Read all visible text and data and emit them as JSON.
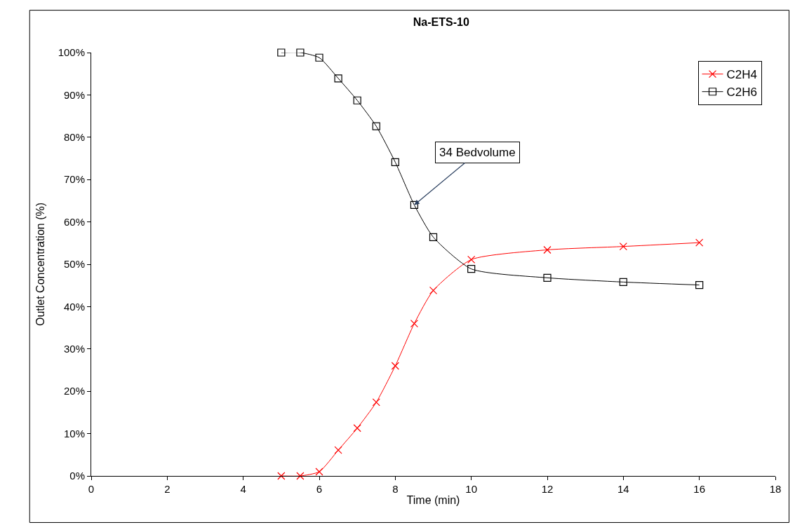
{
  "chart_data": {
    "type": "line",
    "title": "Na-ETS-10",
    "xlabel": "Time (min)",
    "ylabel": "Outlet Concentration (%)",
    "xlim": [
      0,
      18
    ],
    "xticks": [
      0,
      2,
      4,
      6,
      8,
      10,
      12,
      14,
      16,
      18
    ],
    "ylim": [
      0,
      100
    ],
    "yticks": [
      {
        "value": 0,
        "label": "0%"
      },
      {
        "value": 10,
        "label": "10%"
      },
      {
        "value": 20,
        "label": "20%"
      },
      {
        "value": 30,
        "label": "30%"
      },
      {
        "value": 40,
        "label": "40%"
      },
      {
        "value": 50,
        "label": "50%"
      },
      {
        "value": 60,
        "label": "60%"
      },
      {
        "value": 70,
        "label": "70%"
      },
      {
        "value": 80,
        "label": "80%"
      },
      {
        "value": 90,
        "label": "90%"
      },
      {
        "value": 100,
        "label": "100%"
      }
    ],
    "x": [
      5,
      5.5,
      6,
      6.5,
      7,
      7.5,
      8,
      8.5,
      9,
      10,
      12,
      14,
      16
    ],
    "series": [
      {
        "name": "C2H4",
        "color": "#ff0000",
        "marker": "cross",
        "values": [
          0,
          0,
          1.0,
          6.1,
          11.3,
          17.4,
          26.0,
          36.0,
          43.8,
          51.1,
          53.4,
          54.2,
          55.1
        ]
      },
      {
        "name": "C2H6",
        "color": "#000000",
        "marker": "square",
        "values": [
          100,
          100,
          98.8,
          93.9,
          88.7,
          82.6,
          74.1,
          64.0,
          56.4,
          48.9,
          46.8,
          45.8,
          45.1
        ]
      }
    ],
    "annotations": [
      {
        "text": "34 Bedvolume",
        "x": 8.5,
        "y": 64.0
      }
    ],
    "grid": false,
    "legend": "top right",
    "line_style": "solid"
  }
}
